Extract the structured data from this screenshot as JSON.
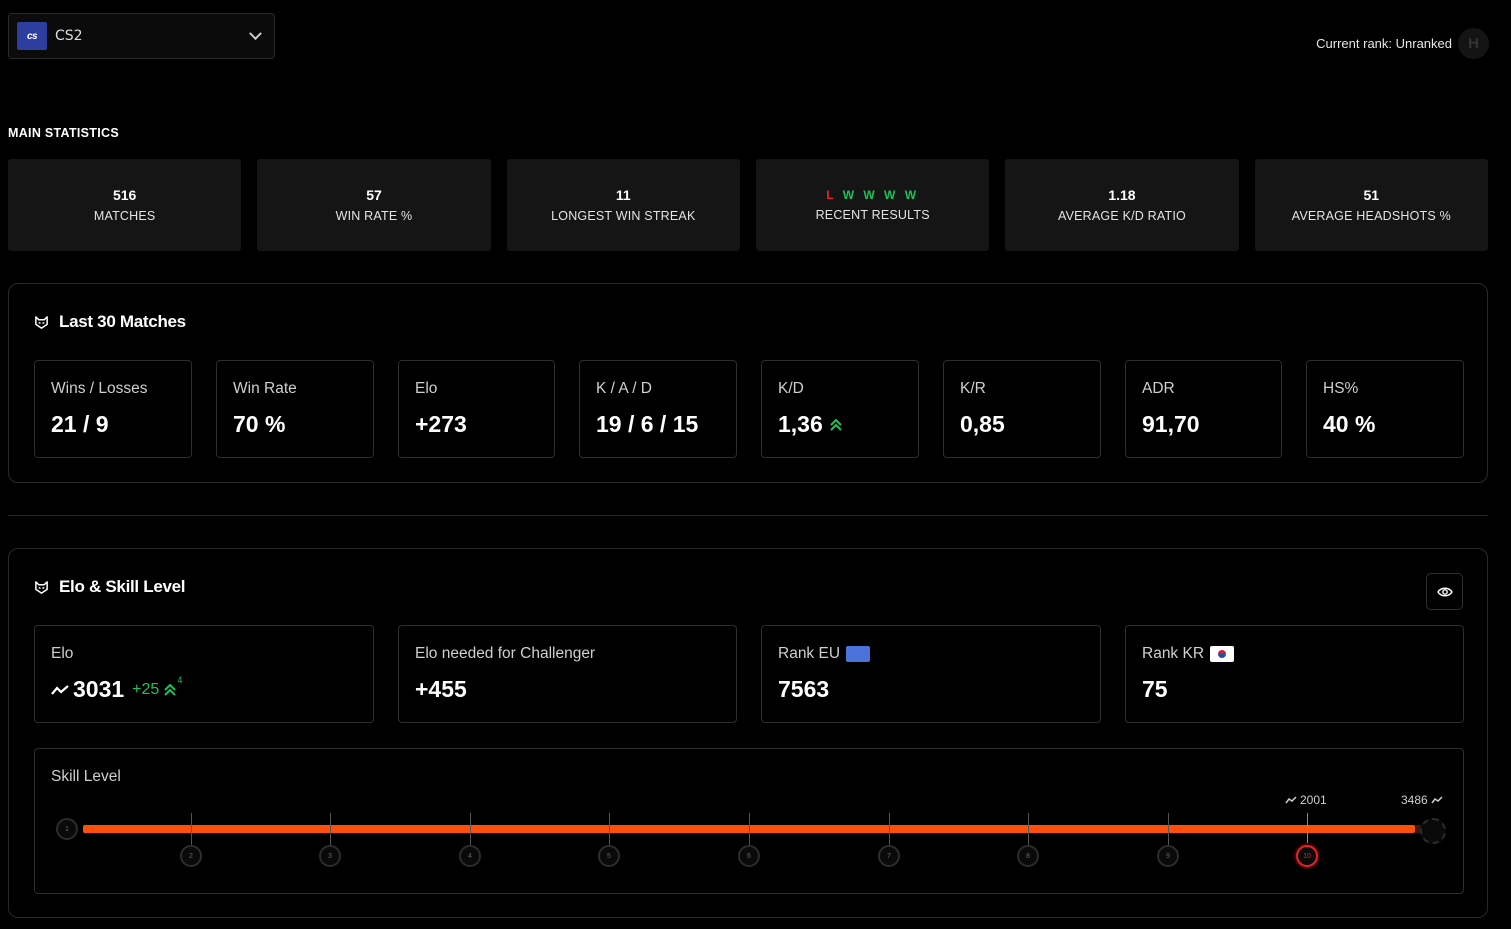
{
  "header": {
    "game": {
      "logo_text": "cs",
      "name": "CS2"
    },
    "current_rank_label": "Current rank: Unranked",
    "rank_icon_text": "H"
  },
  "main_statistics": {
    "title": "MAIN STATISTICS",
    "cards": [
      {
        "value": "516",
        "label": "MATCHES"
      },
      {
        "value": "57",
        "label": "WIN RATE %"
      },
      {
        "value": "11",
        "label": "LONGEST WIN STREAK"
      },
      {
        "value": "L W W W W",
        "label": "RECENT RESULTS",
        "results": [
          "L",
          "W",
          "W",
          "W",
          "W"
        ]
      },
      {
        "value": "1.18",
        "label": "AVERAGE K/D RATIO"
      },
      {
        "value": "51",
        "label": "AVERAGE HEADSHOTS %"
      }
    ]
  },
  "last30": {
    "title": "Last 30 Matches",
    "cards": [
      {
        "label": "Wins / Losses",
        "value": "21 / 9"
      },
      {
        "label": "Win Rate",
        "value": "70 %"
      },
      {
        "label": "Elo",
        "value": "+273"
      },
      {
        "label": "K / A / D",
        "value": "19 / 6 / 15"
      },
      {
        "label": "K/D",
        "value": "1,36",
        "trend": "up"
      },
      {
        "label": "K/R",
        "value": "0,85"
      },
      {
        "label": "ADR",
        "value": "91,70"
      },
      {
        "label": "HS%",
        "value": "40 %"
      }
    ]
  },
  "elo_skill": {
    "title": "Elo & Skill Level",
    "elo": {
      "label": "Elo",
      "value": "3031",
      "change": "+25",
      "streak": "4"
    },
    "challenger": {
      "label": "Elo needed for Challenger",
      "value": "+455"
    },
    "rank_eu": {
      "label": "Rank EU",
      "value": "7563"
    },
    "rank_kr": {
      "label": "Rank KR",
      "value": "75"
    },
    "skill": {
      "label": "Skill Level",
      "levels": [
        "1",
        "2",
        "3",
        "4",
        "5",
        "6",
        "7",
        "8",
        "9",
        "10"
      ],
      "current_level": 10,
      "level10_start": "2001",
      "max_elo": "3486",
      "progress": 0.985
    },
    "colors": {
      "accent": "#ff4f0f",
      "win": "#1ec25a",
      "loss": "#e5232a"
    }
  }
}
